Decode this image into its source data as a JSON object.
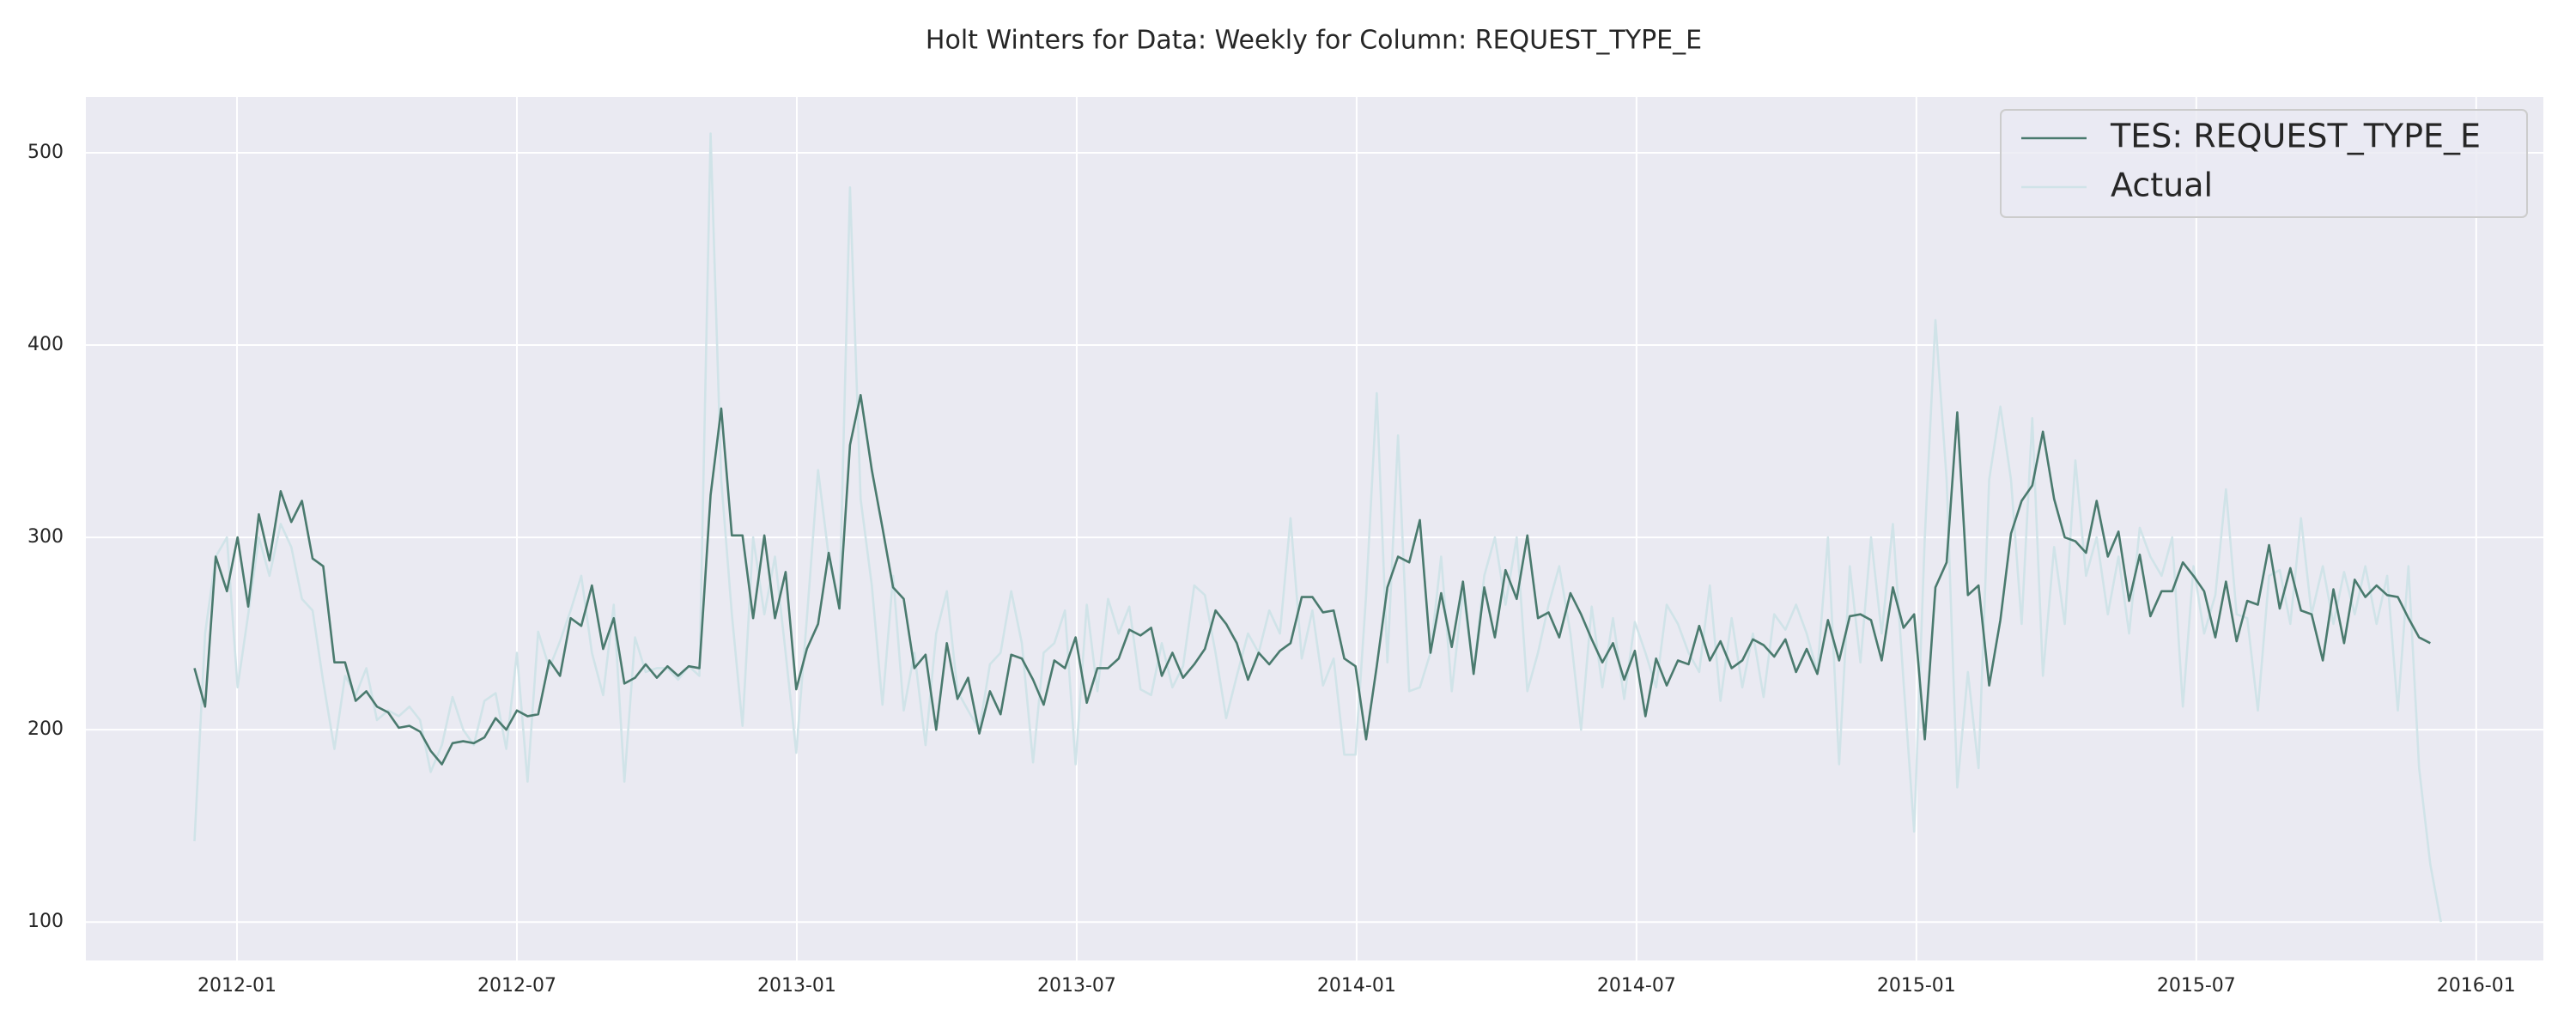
{
  "chart_data": {
    "type": "line",
    "title": "Holt Winters for Data: Weekly for Column: REQUEST_TYPE_E",
    "grid": true,
    "legend": "upper right",
    "background": "#eaeaf2",
    "xlim": [
      2011.73,
      2016.12
    ],
    "xticks": [
      {
        "value": 2012.0,
        "label": "2012-01"
      },
      {
        "value": 2012.5,
        "label": "2012-07"
      },
      {
        "value": 2013.0,
        "label": "2013-01"
      },
      {
        "value": 2013.5,
        "label": "2013-07"
      },
      {
        "value": 2014.0,
        "label": "2014-01"
      },
      {
        "value": 2014.5,
        "label": "2014-07"
      },
      {
        "value": 2015.0,
        "label": "2015-01"
      },
      {
        "value": 2015.5,
        "label": "2015-07"
      },
      {
        "value": 2016.0,
        "label": "2016-01"
      }
    ],
    "ylim": [
      80,
      529
    ],
    "yticks": [
      100,
      200,
      300,
      400,
      500
    ],
    "x": [
      2011.924,
      2011.943,
      2011.962,
      2011.982,
      2012.001,
      2012.02,
      2012.039,
      2012.058,
      2012.078,
      2012.097,
      2012.116,
      2012.135,
      2012.154,
      2012.174,
      2012.193,
      2012.212,
      2012.231,
      2012.25,
      2012.27,
      2012.289,
      2012.308,
      2012.327,
      2012.346,
      2012.366,
      2012.385,
      2012.404,
      2012.423,
      2012.442,
      2012.462,
      2012.481,
      2012.5,
      2012.519,
      2012.538,
      2012.558,
      2012.577,
      2012.596,
      2012.615,
      2012.634,
      2012.654,
      2012.673,
      2012.692,
      2012.711,
      2012.73,
      2012.75,
      2012.769,
      2012.788,
      2012.807,
      2012.826,
      2012.846,
      2012.865,
      2012.884,
      2012.903,
      2012.922,
      2012.942,
      2012.961,
      2012.98,
      2012.999,
      2013.018,
      2013.038,
      2013.057,
      2013.076,
      2013.095,
      2013.114,
      2013.134,
      2013.153,
      2013.172,
      2013.191,
      2013.21,
      2013.23,
      2013.249,
      2013.268,
      2013.287,
      2013.306,
      2013.326,
      2013.345,
      2013.364,
      2013.383,
      2013.402,
      2013.422,
      2013.441,
      2013.46,
      2013.479,
      2013.498,
      2013.518,
      2013.537,
      2013.556,
      2013.575,
      2013.594,
      2013.614,
      2013.633,
      2013.652,
      2013.671,
      2013.69,
      2013.71,
      2013.729,
      2013.748,
      2013.767,
      2013.786,
      2013.806,
      2013.825,
      2013.844,
      2013.863,
      2013.882,
      2013.902,
      2013.921,
      2013.94,
      2013.959,
      2013.978,
      2013.998,
      2014.017,
      2014.036,
      2014.055,
      2014.074,
      2014.094,
      2014.113,
      2014.132,
      2014.151,
      2014.17,
      2014.19,
      2014.209,
      2014.228,
      2014.247,
      2014.266,
      2014.286,
      2014.305,
      2014.324,
      2014.343,
      2014.362,
      2014.382,
      2014.401,
      2014.42,
      2014.439,
      2014.458,
      2014.478,
      2014.497,
      2014.516,
      2014.535,
      2014.554,
      2014.574,
      2014.593,
      2014.612,
      2014.631,
      2014.65,
      2014.67,
      2014.689,
      2014.708,
      2014.727,
      2014.746,
      2014.766,
      2014.785,
      2014.804,
      2014.823,
      2014.842,
      2014.862,
      2014.881,
      2014.9,
      2014.919,
      2014.938,
      2014.958,
      2014.977,
      2014.996,
      2015.015,
      2015.034,
      2015.054,
      2015.073,
      2015.092,
      2015.111,
      2015.13,
      2015.15,
      2015.169,
      2015.188,
      2015.207,
      2015.226,
      2015.246,
      2015.265,
      2015.284,
      2015.303,
      2015.322,
      2015.342,
      2015.361,
      2015.38,
      2015.399,
      2015.418,
      2015.438,
      2015.457,
      2015.476,
      2015.495,
      2015.514,
      2015.534,
      2015.553,
      2015.572,
      2015.591,
      2015.61,
      2015.63,
      2015.649,
      2015.668,
      2015.687,
      2015.706,
      2015.726,
      2015.745,
      2015.764,
      2015.783,
      2015.802,
      2015.822,
      2015.841,
      2015.86,
      2015.879,
      2015.898,
      2015.918,
      2015.937
    ],
    "series": [
      {
        "name": "TES: REQUEST_TYPE_E",
        "color": "#4a7a6e",
        "values": [
          232,
          212,
          290,
          272,
          300,
          264,
          312,
          288,
          324,
          308,
          319,
          289,
          285,
          235,
          235,
          215,
          220,
          212,
          209,
          201,
          202,
          199,
          189,
          182,
          193,
          194,
          193,
          196,
          206,
          200,
          210,
          207,
          208,
          236,
          228,
          258,
          254,
          275,
          242,
          258,
          224,
          227,
          234,
          227,
          233,
          228,
          233,
          232,
          322,
          367,
          301,
          301,
          258,
          301,
          258,
          282,
          221,
          242,
          255,
          292,
          263,
          348,
          374,
          335,
          305,
          274,
          268,
          232,
          239,
          200,
          245,
          216,
          227,
          198,
          220,
          208,
          239,
          237,
          226,
          213,
          236,
          232,
          248,
          214,
          232,
          232,
          237,
          252,
          249,
          253,
          228,
          240,
          227,
          234,
          242,
          262,
          255,
          245,
          226,
          240,
          234,
          241,
          245,
          269,
          269,
          261,
          262,
          237,
          233,
          195,
          233,
          274,
          290,
          287,
          309,
          240,
          271,
          243,
          277,
          229,
          274,
          248,
          283,
          268,
          301,
          258,
          261,
          248,
          271,
          260,
          247,
          235,
          245,
          226,
          241,
          207,
          237,
          223,
          236,
          234,
          254,
          236,
          246,
          232,
          236,
          247,
          244,
          238,
          247,
          230,
          242,
          229,
          257,
          236,
          259,
          260,
          257,
          236,
          274,
          253,
          260,
          195,
          274,
          287,
          365,
          270,
          275,
          223,
          257,
          302,
          319,
          327,
          355,
          320,
          300,
          298,
          292,
          319,
          290,
          303,
          267,
          291,
          259,
          272,
          272,
          287,
          280,
          272,
          248,
          277,
          246,
          267,
          265,
          296,
          263,
          284,
          262,
          260,
          236,
          273,
          245,
          278,
          269,
          275,
          270,
          269,
          258,
          248,
          245,
          null
        ]
      },
      {
        "name": "Actual",
        "color": "#d0e3e8",
        "values": [
          142,
          250,
          290,
          300,
          222,
          260,
          300,
          280,
          307,
          295,
          268,
          262,
          225,
          190,
          228,
          218,
          232,
          205,
          210,
          207,
          212,
          205,
          178,
          192,
          217,
          200,
          192,
          215,
          219,
          190,
          240,
          173,
          251,
          232,
          246,
          262,
          280,
          240,
          218,
          265,
          173,
          248,
          230,
          232,
          232,
          226,
          233,
          228,
          510,
          330,
          260,
          202,
          300,
          260,
          290,
          240,
          188,
          258,
          335,
          290,
          263,
          482,
          320,
          275,
          213,
          280,
          210,
          240,
          192,
          250,
          272,
          220,
          210,
          200,
          234,
          240,
          272,
          245,
          183,
          240,
          245,
          262,
          182,
          265,
          220,
          268,
          250,
          264,
          221,
          218,
          245,
          222,
          233,
          275,
          270,
          240,
          206,
          228,
          250,
          240,
          262,
          250,
          310,
          237,
          262,
          223,
          237,
          187,
          187,
          270,
          375,
          235,
          353,
          220,
          222,
          240,
          290,
          220,
          272,
          230,
          280,
          300,
          265,
          300,
          220,
          240,
          265,
          285,
          250,
          200,
          264,
          222,
          258,
          216,
          256,
          240,
          222,
          265,
          255,
          240,
          230,
          275,
          215,
          258,
          222,
          250,
          217,
          260,
          252,
          265,
          250,
          230,
          300,
          182,
          285,
          235,
          300,
          250,
          307,
          225,
          147,
          300,
          413,
          330,
          170,
          230,
          180,
          330,
          368,
          330,
          255,
          362,
          228,
          295,
          255,
          340,
          280,
          300,
          260,
          290,
          250,
          305,
          290,
          280,
          300,
          212,
          285,
          250,
          270,
          325,
          260,
          258,
          210,
          280,
          283,
          255,
          310,
          260,
          285,
          255,
          282,
          260,
          285,
          255,
          280,
          210,
          285,
          180,
          130,
          100
        ]
      }
    ]
  }
}
